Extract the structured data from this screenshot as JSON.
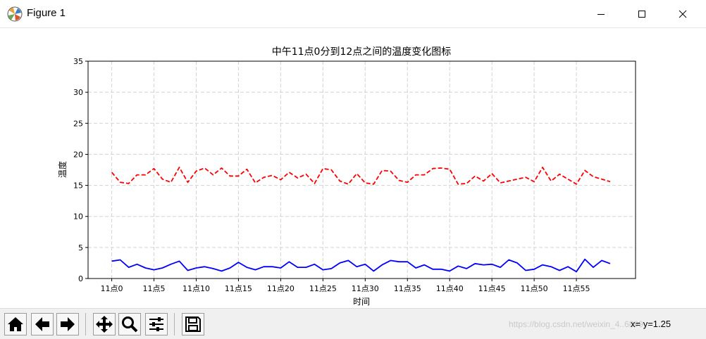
{
  "window": {
    "title": "Figure 1",
    "icons": {
      "app": "matplotlib-icon",
      "minimize": "minimize-icon",
      "maximize": "maximize-icon",
      "close": "close-icon"
    }
  },
  "toolbar": {
    "buttons": [
      {
        "name": "home-button",
        "icon": "home-icon"
      },
      {
        "name": "back-button",
        "icon": "arrow-left-icon"
      },
      {
        "name": "forward-button",
        "icon": "arrow-right-icon"
      },
      {
        "name": "pan-button",
        "icon": "move-icon"
      },
      {
        "name": "zoom-button",
        "icon": "magnifier-icon"
      },
      {
        "name": "configure-subplots-button",
        "icon": "sliders-icon"
      },
      {
        "name": "save-button",
        "icon": "floppy-icon"
      }
    ],
    "coordinates": "x=  y=1.25",
    "watermark": "https://blog.csdn.net/weixin_4..6899"
  },
  "chart_data": {
    "type": "line",
    "title": "中午11点0分到12点之间的温度变化图标",
    "xlabel": "时间",
    "ylabel": "温度",
    "x": [
      0,
      1,
      2,
      3,
      4,
      5,
      6,
      7,
      8,
      9,
      10,
      11,
      12,
      13,
      14,
      15,
      16,
      17,
      18,
      19,
      20,
      21,
      22,
      23,
      24,
      25,
      26,
      27,
      28,
      29,
      30,
      31,
      32,
      33,
      34,
      35,
      36,
      37,
      38,
      39,
      40,
      41,
      42,
      43,
      44,
      45,
      46,
      47,
      48,
      49,
      50,
      51,
      52,
      53,
      54,
      55,
      56,
      57,
      58,
      59
    ],
    "xticks": [
      0,
      5,
      10,
      15,
      20,
      25,
      30,
      35,
      40,
      45,
      50,
      55
    ],
    "xtick_labels": [
      "11点0",
      "11点5",
      "11点10",
      "11点15",
      "11点20",
      "11点25",
      "11点30",
      "11点35",
      "11点40",
      "11点45",
      "11点50",
      "11点55"
    ],
    "xlim": [
      -2.8,
      62
    ],
    "ylim": [
      0,
      35
    ],
    "yticks": [
      0,
      5,
      10,
      15,
      20,
      25,
      30,
      35
    ],
    "grid": true,
    "grid_style": "dashed",
    "series": [
      {
        "color": "#ff0000",
        "linestyle": "dashed",
        "values": [
          17.1,
          15.5,
          15.3,
          16.7,
          16.7,
          17.7,
          16.0,
          15.5,
          17.9,
          15.5,
          17.3,
          17.8,
          16.7,
          17.8,
          16.5,
          16.5,
          17.6,
          15.4,
          16.3,
          16.6,
          15.9,
          17.1,
          16.2,
          16.8,
          15.3,
          17.7,
          17.5,
          15.7,
          15.2,
          16.9,
          15.4,
          15.2,
          17.4,
          17.3,
          15.8,
          15.5,
          16.7,
          16.7,
          17.7,
          17.8,
          17.6,
          15.2,
          15.3,
          16.5,
          15.7,
          16.9,
          15.4,
          15.7,
          16.0,
          16.3,
          15.6,
          17.9,
          15.7,
          16.8,
          16.0,
          15.2,
          17.4,
          16.4,
          16.0,
          15.6
        ]
      },
      {
        "color": "#0000ff",
        "linestyle": "solid",
        "values": [
          2.8,
          3.0,
          1.8,
          2.3,
          1.7,
          1.4,
          1.7,
          2.3,
          2.8,
          1.3,
          1.7,
          1.9,
          1.6,
          1.2,
          1.7,
          2.6,
          1.8,
          1.4,
          1.9,
          1.9,
          1.7,
          2.7,
          1.8,
          1.8,
          2.3,
          1.4,
          1.6,
          2.5,
          2.9,
          1.9,
          2.3,
          1.2,
          2.2,
          2.9,
          2.7,
          2.7,
          1.7,
          2.2,
          1.5,
          1.5,
          1.2,
          2.0,
          1.6,
          2.4,
          2.2,
          2.3,
          1.8,
          3.0,
          2.5,
          1.3,
          1.5,
          2.2,
          1.9,
          1.3,
          1.9,
          1.1,
          3.1,
          1.8,
          2.9,
          2.4
        ]
      }
    ]
  }
}
